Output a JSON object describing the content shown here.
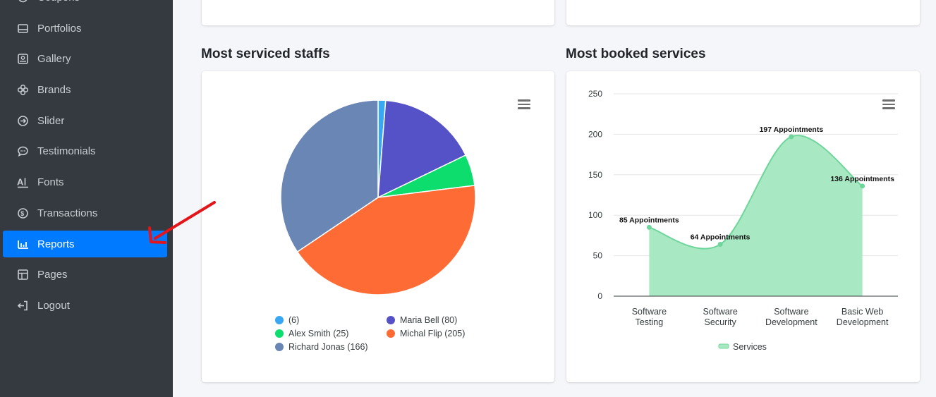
{
  "sidebar": {
    "items": [
      {
        "label": "Coupons",
        "icon": "coupon-icon"
      },
      {
        "label": "Portfolios",
        "icon": "portfolio-icon"
      },
      {
        "label": "Gallery",
        "icon": "gallery-icon"
      },
      {
        "label": "Brands",
        "icon": "brands-icon"
      },
      {
        "label": "Slider",
        "icon": "slider-icon"
      },
      {
        "label": "Testimonials",
        "icon": "chat-icon"
      },
      {
        "label": "Fonts",
        "icon": "fonts-icon"
      },
      {
        "label": "Transactions",
        "icon": "transactions-icon"
      },
      {
        "label": "Reports",
        "icon": "bar-chart-icon",
        "active": true
      },
      {
        "label": "Pages",
        "icon": "pages-icon"
      },
      {
        "label": "Logout",
        "icon": "logout-icon"
      }
    ]
  },
  "colors": {
    "sidebar_bg": "#343a40",
    "active_bg": "#007bff",
    "arrow": "#e3151a",
    "area_fill": "#a8e8c3",
    "area_line": "#6fd69b"
  },
  "staff_card": {
    "title": "Most serviced staffs"
  },
  "services_card": {
    "title": "Most booked services"
  },
  "chart_data": [
    {
      "type": "pie",
      "title": "Most serviced staffs",
      "slices": [
        {
          "label": "(6)",
          "value": 6,
          "color": "#38a8f3"
        },
        {
          "label": "Maria Bell (80)",
          "value": 80,
          "color": "#5551c6"
        },
        {
          "label": "Alex Smith (25)",
          "value": 25,
          "color": "#0ddd6d"
        },
        {
          "label": "Michal Flip (205)",
          "value": 205,
          "color": "#ff6b35"
        },
        {
          "label": "Richard Jonas (166)",
          "value": 166,
          "color": "#6986b5"
        }
      ],
      "legend": "bottom"
    },
    {
      "type": "area",
      "title": "Most booked services",
      "categories": [
        "Software Testing",
        "Software Security",
        "Software Development",
        "Basic Web Development"
      ],
      "series": [
        {
          "name": "Services",
          "values": [
            85,
            64,
            197,
            136
          ]
        }
      ],
      "data_labels": [
        "85 Appointments",
        "64 Appointments",
        "197 Appointments",
        "136 Appointments"
      ],
      "y_ticks": [
        "0",
        "50",
        "100",
        "150",
        "200",
        "250"
      ],
      "ylim": [
        0,
        250
      ],
      "legend": "bottom"
    }
  ]
}
